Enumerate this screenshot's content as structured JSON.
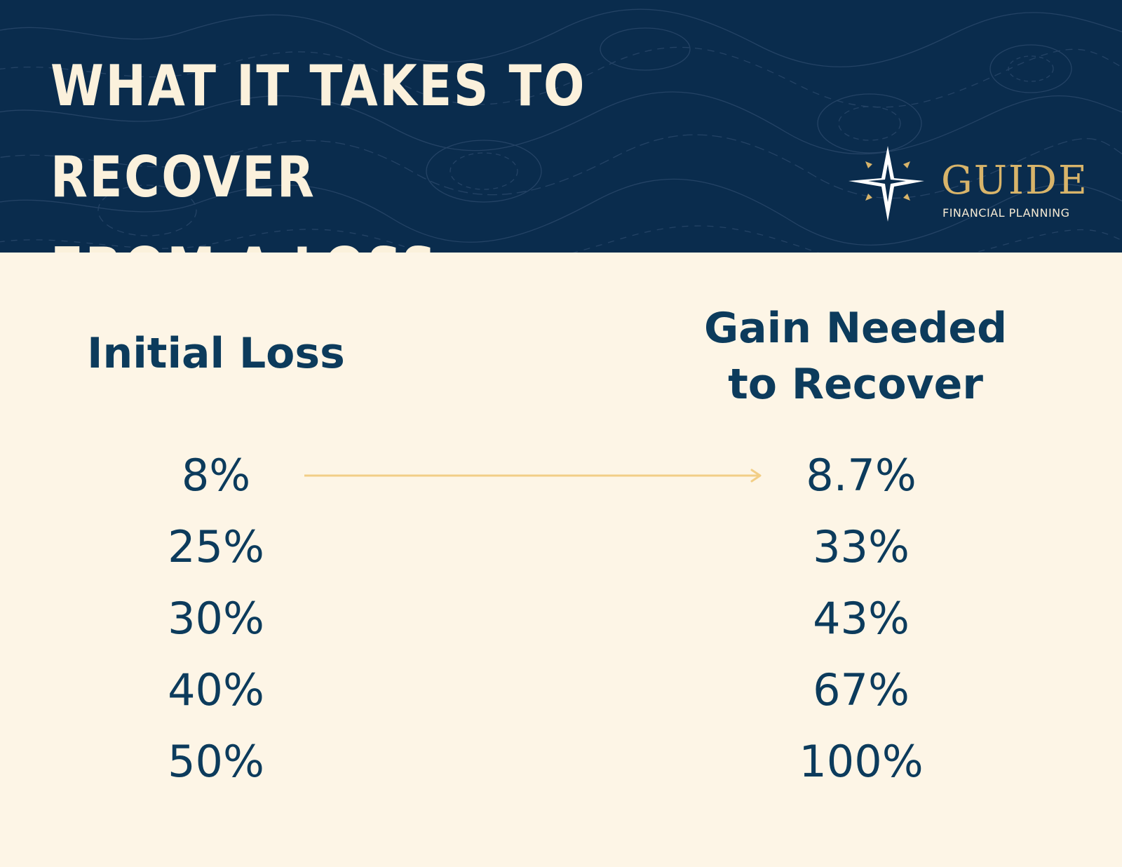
{
  "title": "What it takes to recover\nfrom a loss",
  "logo": {
    "name": "GUIDE",
    "subtitle": "FINANCIAL PLANNING",
    "icon": "compass-star-icon"
  },
  "colors": {
    "banner": "#0a2c4d",
    "background": "#fdf5e6",
    "text": "#0c3b5c",
    "accent": "#d8b46a",
    "arrow": "#f2ce86"
  },
  "chart_data": {
    "type": "table",
    "columns": [
      "Initial Loss",
      "Gain Needed to Recover"
    ],
    "header_lines": {
      "initial_loss": [
        "Initial Loss"
      ],
      "gain_needed": [
        "Gain Needed",
        "to Recover"
      ]
    },
    "rows": [
      {
        "initial_loss": "8%",
        "gain_needed": "8.7%"
      },
      {
        "initial_loss": "25%",
        "gain_needed": "33%"
      },
      {
        "initial_loss": "30%",
        "gain_needed": "43%"
      },
      {
        "initial_loss": "40%",
        "gain_needed": "67%"
      },
      {
        "initial_loss": "50%",
        "gain_needed": "100%"
      }
    ],
    "connector": {
      "row": 0,
      "symbol": "arrow-right"
    }
  }
}
